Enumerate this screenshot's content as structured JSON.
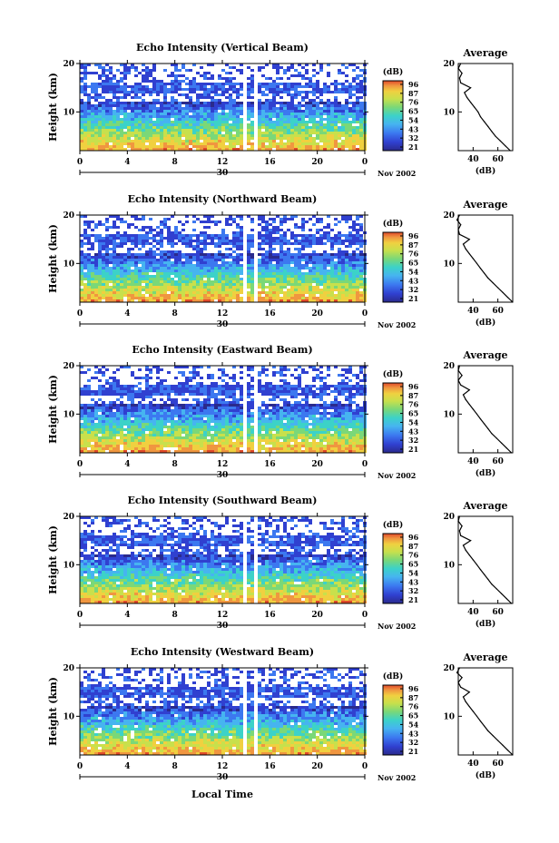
{
  "figure": {
    "xlabel": "Local Time",
    "ylabel": "Height (km)",
    "date_label": "Nov 2002",
    "day_label": "30",
    "avg_title": "Average",
    "avg_xlabel": "(dB)",
    "cbar_title": "(dB)"
  },
  "chart_data": [
    {
      "type": "heatmap",
      "title": "Echo Intensity (Vertical Beam)",
      "xlabel": "Local Time",
      "ylabel": "Height (km)",
      "xlim": [
        0,
        24
      ],
      "ylim": [
        2,
        20
      ],
      "xticks": [
        "0",
        "4",
        "8",
        "12",
        "16",
        "20",
        "0"
      ],
      "yticks": [
        "20",
        "10"
      ],
      "colorbar_ticks": [
        "96",
        "87",
        "76",
        "65",
        "54",
        "43",
        "32",
        "21"
      ],
      "tropopause_km": 15.0,
      "average": {
        "title": "Average",
        "xlabel": "(dB)",
        "xticks": [
          "40",
          "60"
        ],
        "height_km": [
          2,
          3,
          4,
          5,
          6,
          7,
          8,
          9,
          10,
          11,
          12,
          13,
          14,
          15,
          16,
          17,
          18,
          19,
          20
        ],
        "db": [
          70,
          66,
          62,
          58,
          55,
          52,
          49,
          46,
          44,
          41,
          38,
          35,
          33,
          38,
          30,
          29,
          31,
          28,
          30
        ]
      }
    },
    {
      "type": "heatmap",
      "title": "Echo Intensity (Northward Beam)",
      "xlabel": "Local Time",
      "ylabel": "Height (km)",
      "xlim": [
        0,
        24
      ],
      "ylim": [
        2,
        20
      ],
      "xticks": [
        "0",
        "4",
        "8",
        "12",
        "16",
        "20",
        "0"
      ],
      "yticks": [
        "20",
        "10"
      ],
      "colorbar_ticks": [
        "96",
        "87",
        "76",
        "65",
        "54",
        "43",
        "32",
        "21"
      ],
      "tropopause_km": 15.0,
      "average": {
        "title": "Average",
        "xlabel": "(dB)",
        "xticks": [
          "40",
          "60"
        ],
        "height_km": [
          2,
          3,
          4,
          5,
          6,
          7,
          8,
          9,
          10,
          11,
          12,
          13,
          14,
          15,
          16,
          17,
          18,
          19,
          20
        ],
        "db": [
          72,
          68,
          64,
          60,
          56,
          52,
          49,
          46,
          43,
          40,
          37,
          34,
          32,
          37,
          29,
          28,
          30,
          27,
          29
        ]
      }
    },
    {
      "type": "heatmap",
      "title": "Echo Intensity (Eastward Beam)",
      "xlabel": "Local Time",
      "ylabel": "Height (km)",
      "xlim": [
        0,
        24
      ],
      "ylim": [
        2,
        20
      ],
      "xticks": [
        "0",
        "4",
        "8",
        "12",
        "16",
        "20",
        "0"
      ],
      "yticks": [
        "20",
        "10"
      ],
      "colorbar_ticks": [
        "96",
        "87",
        "76",
        "65",
        "54",
        "43",
        "32",
        "21"
      ],
      "tropopause_km": 15.0,
      "average": {
        "title": "Average",
        "xlabel": "(dB)",
        "xticks": [
          "40",
          "60"
        ],
        "height_km": [
          2,
          3,
          4,
          5,
          6,
          7,
          8,
          9,
          10,
          11,
          12,
          13,
          14,
          15,
          16,
          17,
          18,
          19,
          20
        ],
        "db": [
          71,
          67,
          63,
          59,
          55,
          52,
          49,
          46,
          43,
          40,
          37,
          34,
          32,
          37,
          30,
          28,
          31,
          28,
          29
        ]
      }
    },
    {
      "type": "heatmap",
      "title": "Echo Intensity (Southward Beam)",
      "xlabel": "Local Time",
      "ylabel": "Height (km)",
      "xlim": [
        0,
        24
      ],
      "ylim": [
        2,
        20
      ],
      "xticks": [
        "0",
        "4",
        "8",
        "12",
        "16",
        "20",
        "0"
      ],
      "yticks": [
        "20",
        "10"
      ],
      "colorbar_ticks": [
        "96",
        "87",
        "76",
        "65",
        "54",
        "43",
        "32",
        "21"
      ],
      "tropopause_km": 15.0,
      "average": {
        "title": "Average",
        "xlabel": "(dB)",
        "xticks": [
          "40",
          "60"
        ],
        "height_km": [
          2,
          3,
          4,
          5,
          6,
          7,
          8,
          9,
          10,
          11,
          12,
          13,
          14,
          15,
          16,
          17,
          18,
          19,
          20
        ],
        "db": [
          71,
          67,
          63,
          59,
          55,
          52,
          49,
          46,
          43,
          40,
          37,
          34,
          32,
          38,
          30,
          29,
          31,
          28,
          29
        ]
      }
    },
    {
      "type": "heatmap",
      "title": "Echo Intensity (Westward Beam)",
      "xlabel": "Local Time",
      "ylabel": "Height (km)",
      "xlim": [
        0,
        24
      ],
      "ylim": [
        2,
        20
      ],
      "xticks": [
        "0",
        "4",
        "8",
        "12",
        "16",
        "20",
        "0"
      ],
      "yticks": [
        "20",
        "10"
      ],
      "colorbar_ticks": [
        "96",
        "87",
        "76",
        "65",
        "54",
        "43",
        "32",
        "21"
      ],
      "tropopause_km": 15.0,
      "average": {
        "title": "Average",
        "xlabel": "(dB)",
        "xticks": [
          "40",
          "60"
        ],
        "height_km": [
          2,
          3,
          4,
          5,
          6,
          7,
          8,
          9,
          10,
          11,
          12,
          13,
          14,
          15,
          16,
          17,
          18,
          19,
          20
        ],
        "db": [
          72,
          68,
          64,
          60,
          56,
          52,
          49,
          46,
          43,
          40,
          37,
          34,
          32,
          37,
          30,
          28,
          31,
          27,
          29
        ]
      }
    }
  ],
  "colors": {
    "colormap": [
      "#2a2a8c",
      "#3040d0",
      "#3c78f0",
      "#46b4f0",
      "#3cd2c8",
      "#7ad878",
      "#c8e04c",
      "#f0d040",
      "#f09640",
      "#e04a2a"
    ],
    "line": "#000000",
    "background": "#ffffff"
  }
}
